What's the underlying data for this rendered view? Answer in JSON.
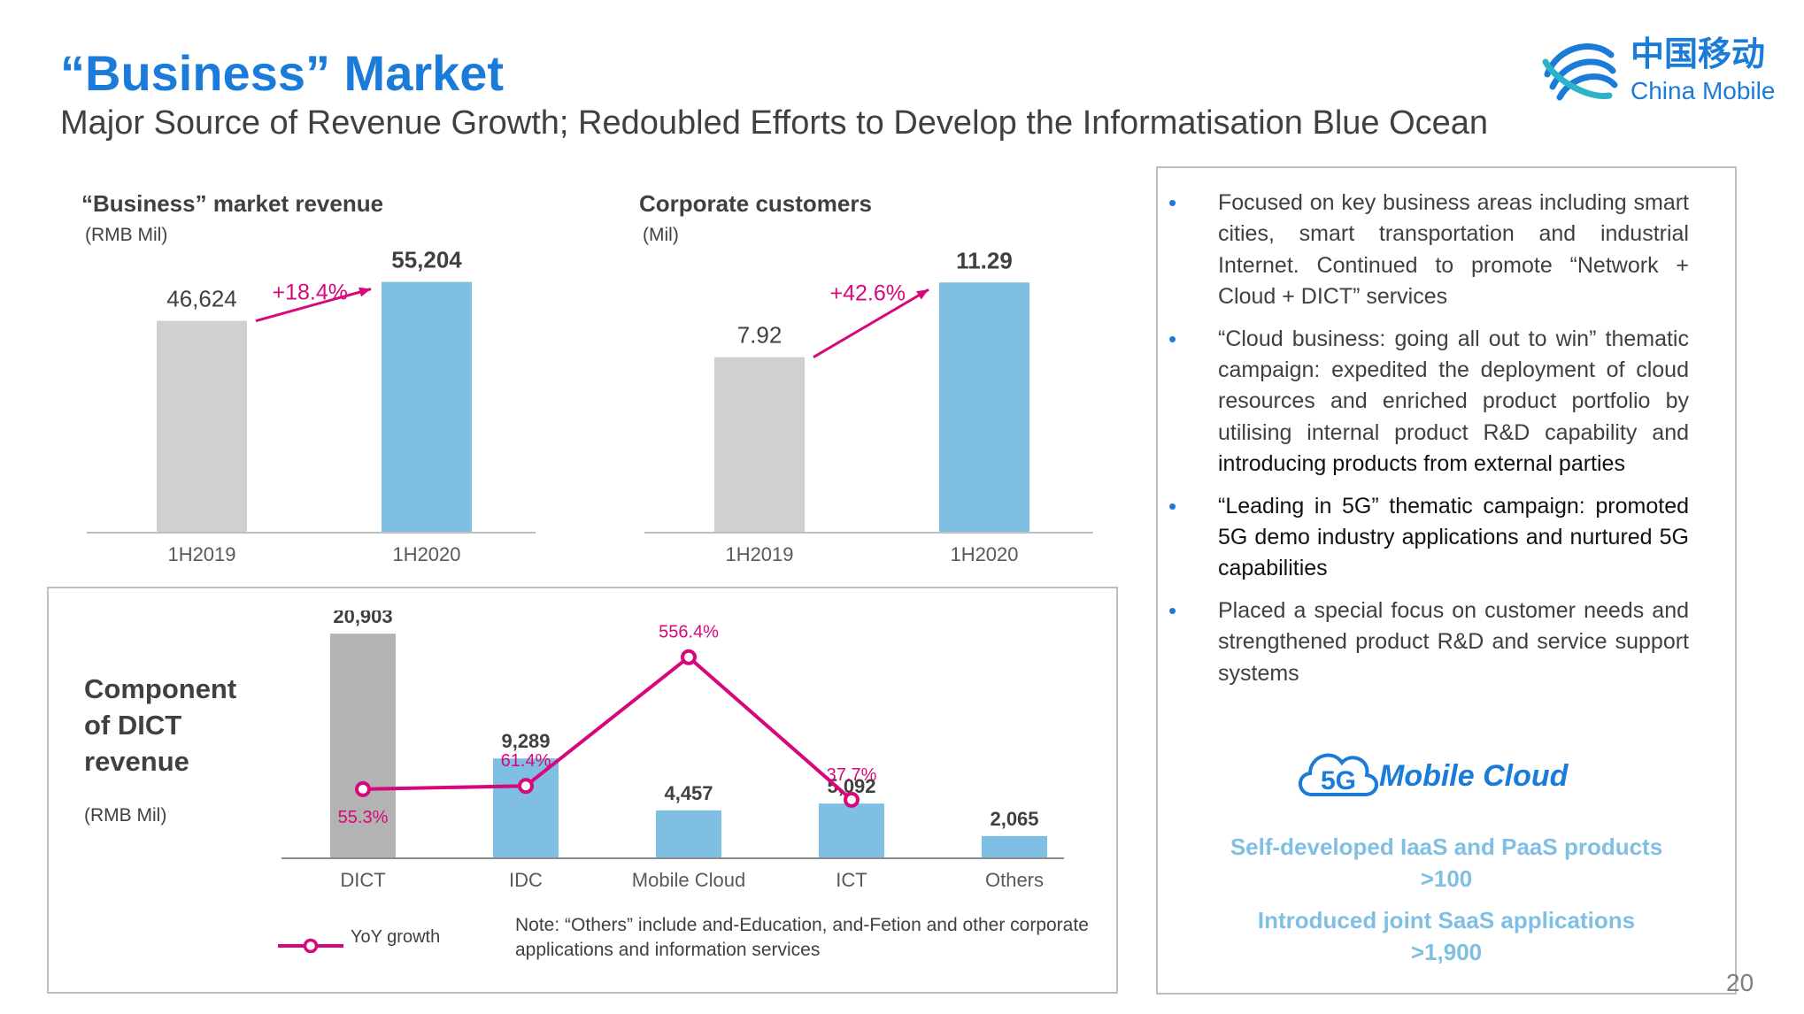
{
  "header": {
    "title": "“Business” Market",
    "subtitle": "Major Source of Revenue Growth; Redoubled Efforts to Develop the Informatisation Blue Ocean",
    "logo_cn": "中国移动",
    "logo_en": "China Mobile",
    "page_number": "20"
  },
  "colors": {
    "title_blue": "#1a7bd8",
    "bar_grey": "#d0d0d0",
    "bar_dark_grey": "#b3b3b3",
    "bar_blue": "#7fbfe3",
    "growth_magenta": "#d6087c",
    "text": "#404040"
  },
  "chart_data": [
    {
      "id": "business-revenue",
      "type": "bar",
      "title": "“Business” market revenue",
      "unit": "(RMB Mil)",
      "categories": [
        "1H2019",
        "1H2020"
      ],
      "values": [
        46624,
        55204
      ],
      "value_labels": [
        "46,624",
        "55,204"
      ],
      "growth_label": "+18.4%",
      "ylim": [
        0,
        60000
      ]
    },
    {
      "id": "corporate-customers",
      "type": "bar",
      "title": "Corporate customers",
      "unit": "(Mil)",
      "categories": [
        "1H2019",
        "1H2020"
      ],
      "values": [
        7.92,
        11.29
      ],
      "value_labels": [
        "7.92",
        "11.29"
      ],
      "growth_label": "+42.6%",
      "ylim": [
        0,
        12.3
      ]
    },
    {
      "id": "dict-components",
      "type": "bar",
      "title": "Component of DICT revenue",
      "unit": "(RMB Mil)",
      "categories": [
        "DICT",
        "IDC",
        "Mobile Cloud",
        "ICT",
        "Others"
      ],
      "values": [
        20903,
        9289,
        4457,
        5092,
        2065
      ],
      "value_labels": [
        "20,903",
        "9,289",
        "4,457",
        "5,092",
        "2,065"
      ],
      "growth_series": {
        "name": "YoY growth",
        "categories": [
          "DICT",
          "IDC",
          "Mobile Cloud",
          "ICT"
        ],
        "values": [
          55.3,
          61.4,
          556.4,
          37.7
        ],
        "labels": [
          "55.3%",
          "61.4%",
          "556.4%",
          "37.7%"
        ]
      },
      "note": "Note: “Others” include and-Education, and-Fetion and other corporate applications and information services",
      "ylim": [
        0,
        21000
      ]
    }
  ],
  "dict_title_lines": [
    "Component",
    "of DICT",
    "revenue"
  ],
  "panel": {
    "bullets": [
      {
        "text": "Focused on key business areas including smart cities, smart transportation and industrial Internet. Continued to promote “Network + Cloud + DICT” services"
      },
      {
        "text": "“Cloud business: going all out to win” thematic campaign: expedited the deployment of cloud resources and enriched product portfolio by utilising internal product R&D capability and",
        "text_dark": "introducing products from external parties"
      },
      {
        "text_dark": "“Leading in 5G” thematic campaign: promoted 5G demo industry applications and nurtured 5G capabilities"
      },
      {
        "text": "Placed a special focus on customer needs and strengthened product R&D and service support systems"
      }
    ],
    "brand_badge": "5G",
    "brand": "Mobile Cloud",
    "stats": [
      {
        "label": "Self-developed IaaS and PaaS products",
        "value": ">100"
      },
      {
        "label": "Introduced joint SaaS applications",
        "value": ">1,900"
      }
    ]
  }
}
